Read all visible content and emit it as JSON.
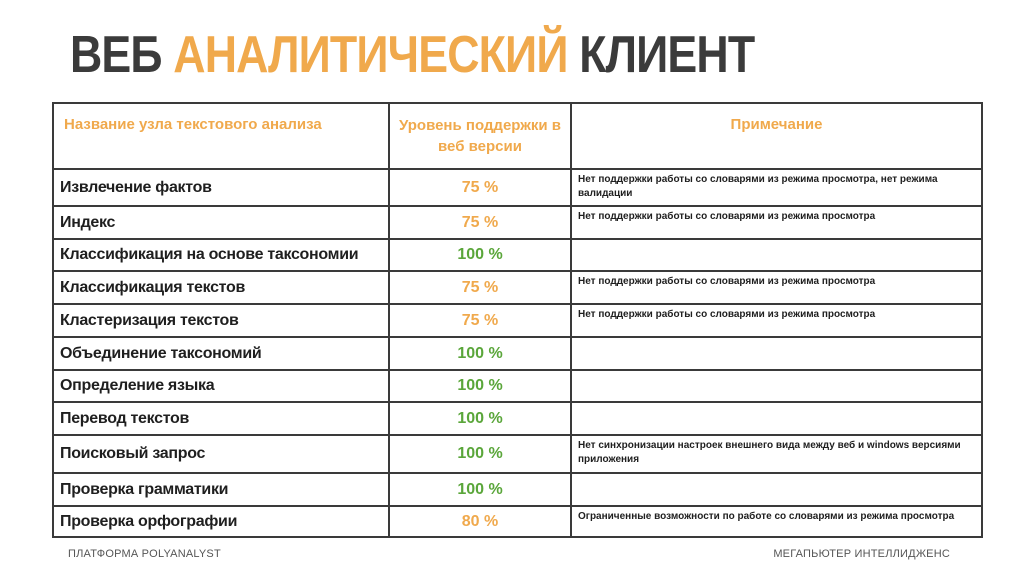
{
  "title": {
    "part1": "ВЕБ",
    "part2": "АНАЛИТИЧЕСКИЙ",
    "part3": "КЛИЕНТ"
  },
  "colors": {
    "accent": "#f0a94c",
    "dark": "#3b3b3b",
    "green": "#5aa63a"
  },
  "table": {
    "headers": {
      "name": "Название узла текстового анализа",
      "level": "Уровень поддержки в веб версии",
      "note": "Примечание"
    },
    "rows": [
      {
        "name": "Извлечение фактов",
        "level": "75 %",
        "note": "Нет поддержки работы со словарями из режима просмотра, нет режима валидации"
      },
      {
        "name": "Индекс",
        "level": "75 %",
        "note": "Нет поддержки работы со словарями из режима просмотра"
      },
      {
        "name": "Классификация на основе таксономии",
        "level": "100 %",
        "note": ""
      },
      {
        "name": "Классификация текстов",
        "level": "75 %",
        "note": "Нет поддержки работы со словарями из режима просмотра"
      },
      {
        "name": "Кластеризация текстов",
        "level": "75 %",
        "note": "Нет поддержки работы со словарями из режима просмотра"
      },
      {
        "name": "Объединение таксономий",
        "level": "100 %",
        "note": ""
      },
      {
        "name": "Определение языка",
        "level": "100 %",
        "note": ""
      },
      {
        "name": "Перевод текстов",
        "level": "100 %",
        "note": ""
      },
      {
        "name": "Поисковый запрос",
        "level": "100 %",
        "note": "Нет синхронизации настроек внешнего вида между веб и windows версиями приложения"
      },
      {
        "name": "Проверка грамматики",
        "level": "100 %",
        "note": ""
      },
      {
        "name": "Проверка орфографии",
        "level": "80 %",
        "note": "Ограниченные возможности по работе со словарями из режима просмотра"
      }
    ]
  },
  "footer": {
    "left": "ПЛАТФОРМА POLYANALYST",
    "right": "МЕГАПЬЮТЕР ИНТЕЛЛИДЖЕНС"
  }
}
